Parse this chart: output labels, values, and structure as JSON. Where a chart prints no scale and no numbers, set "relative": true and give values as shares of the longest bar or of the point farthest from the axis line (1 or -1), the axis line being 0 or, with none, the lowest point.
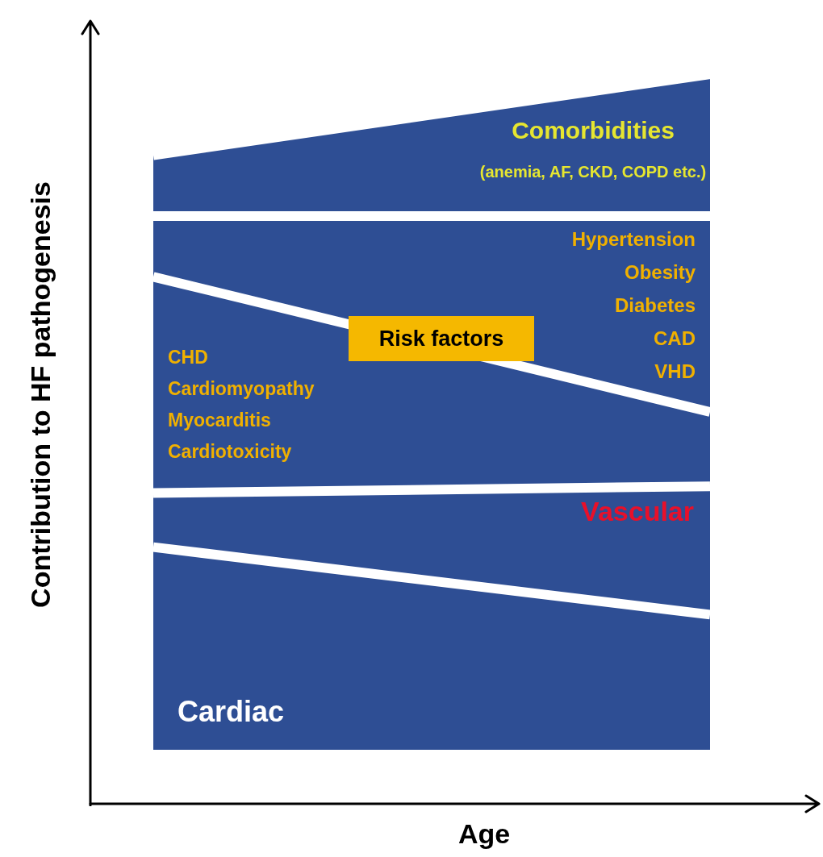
{
  "chart_data": {
    "type": "area",
    "relative": true,
    "stacked": true,
    "xlabel": "Age",
    "ylabel": "Contribution to HF pathogenesis",
    "categories": [
      null,
      null
    ],
    "series": [
      {
        "name": "Cardiac",
        "color": "#2e4e94",
        "values": [
          0.3,
          0.2
        ]
      },
      {
        "name": "Vascular",
        "color": "#2e4e94",
        "values": [
          0.08,
          0.19
        ]
      },
      {
        "color": "#2e4e94",
        "values": [
          0.32,
          0.11
        ]
      },
      {
        "color": "#2e4e94",
        "values": [
          0.09,
          0.29
        ]
      },
      {
        "name": "Comorbidities",
        "color": "#2e4e94",
        "values": [
          0.09,
          0.21
        ]
      }
    ],
    "annotations": [
      "Risk factors",
      "CHD\nCardiomyopathy\nMyocarditis\nCardiotoxicity",
      "Hypertension\nObesity\nDiabetes\nCAD\nVHD",
      "(anemia, AF, CKD, COPD etc.)"
    ]
  }
}
